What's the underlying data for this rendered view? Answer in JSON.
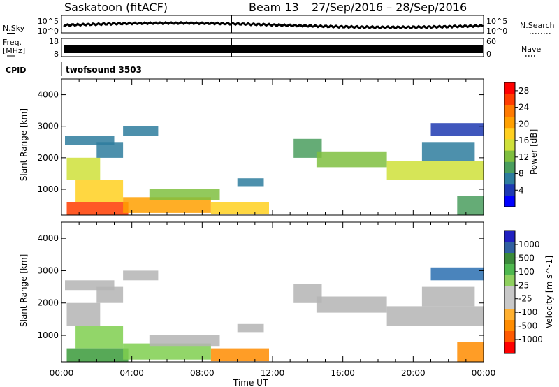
{
  "header": {
    "station": "Saskatoon (fitACF)",
    "beam": "Beam 13",
    "date_range": "27/Sep/2016 – 28/Sep/2016"
  },
  "strips": {
    "nsky_label": "N.Sky",
    "nsky_ticks": [
      "10^5",
      "10^0"
    ],
    "nsearch_label": "N.Search",
    "nsearch_ticks": [
      "10^5",
      "10^0"
    ],
    "freq_label_1": "Freq.",
    "freq_label_2": "[MHz]",
    "freq_ticks": [
      "18",
      "8"
    ],
    "nave_label": "Nave",
    "nave_ticks": [
      "60",
      "0"
    ],
    "cpid_label": "CPID",
    "cpid_value": "twofsound 3503"
  },
  "colors": {
    "power": [
      "#0000ff",
      "#1e3ab2",
      "#2e7d9e",
      "#4a9e5e",
      "#7fbf3f",
      "#cfe03a",
      "#ffd020",
      "#ffa000",
      "#ff7a00",
      "#ff3c00",
      "#ff0000"
    ],
    "velocity": [
      "#2020c0",
      "#3060a0",
      "#3a8a3a",
      "#4fb84f",
      "#8fd05f",
      "#c8c8c8",
      "#c8c8c8",
      "#ffb030",
      "#ff8c00",
      "#ff5a00",
      "#ff0000"
    ],
    "ground_scatter": "#b4b4b4"
  },
  "chart_data": [
    {
      "type": "heatmap",
      "title": "Power",
      "xlabel": "Time UT",
      "ylabel": "Slant Range [km]",
      "xlim": [
        "00:00",
        "00:00"
      ],
      "x_tick_labels": [
        "00:00",
        "04:00",
        "08:00",
        "12:00",
        "16:00",
        "20:00",
        "00:00"
      ],
      "ylim": [
        180,
        4500
      ],
      "y_ticks": [
        1000,
        2000,
        3000,
        4000
      ],
      "colorbar": {
        "label": "Power [dB]",
        "ticks": [
          4,
          8,
          12,
          16,
          20,
          24,
          28
        ],
        "range": [
          0,
          30
        ]
      },
      "regions": [
        {
          "t0": 0.3,
          "t1": 2.2,
          "r0": 1300,
          "r1": 2000,
          "value": 14
        },
        {
          "t0": 0.2,
          "t1": 3.0,
          "r0": 2400,
          "r1": 2700,
          "value": 6
        },
        {
          "t0": 2.0,
          "t1": 3.5,
          "r0": 2000,
          "r1": 2500,
          "value": 7
        },
        {
          "t0": 3.5,
          "t1": 5.5,
          "r0": 2700,
          "r1": 3000,
          "value": 6
        },
        {
          "t0": 0.3,
          "t1": 3.8,
          "r0": 180,
          "r1": 600,
          "value": 26
        },
        {
          "t0": 0.8,
          "t1": 3.5,
          "r0": 600,
          "r1": 1300,
          "value": 17
        },
        {
          "t0": 3.5,
          "t1": 8.5,
          "r0": 250,
          "r1": 750,
          "value": 20
        },
        {
          "t0": 5.0,
          "t1": 9.0,
          "r0": 650,
          "r1": 1000,
          "value": 13
        },
        {
          "t0": 8.5,
          "t1": 11.8,
          "r0": 200,
          "r1": 600,
          "value": 18
        },
        {
          "t0": 10.0,
          "t1": 11.5,
          "r0": 1100,
          "r1": 1350,
          "value": 6
        },
        {
          "t0": 13.2,
          "t1": 14.8,
          "r0": 2000,
          "r1": 2600,
          "value": 9
        },
        {
          "t0": 14.5,
          "t1": 18.5,
          "r0": 1700,
          "r1": 2200,
          "value": 12
        },
        {
          "t0": 18.5,
          "t1": 24.0,
          "r0": 1300,
          "r1": 1900,
          "value": 16
        },
        {
          "t0": 20.5,
          "t1": 23.5,
          "r0": 1900,
          "r1": 2500,
          "value": 7
        },
        {
          "t0": 21.0,
          "t1": 24.0,
          "r0": 2700,
          "r1": 3100,
          "value": 5
        },
        {
          "t0": 22.5,
          "t1": 24.0,
          "r0": 180,
          "r1": 800,
          "value": 10
        }
      ]
    },
    {
      "type": "heatmap",
      "title": "Velocity",
      "xlabel": "Time UT",
      "ylabel": "Slant Range [km]",
      "xlim": [
        "00:00",
        "00:00"
      ],
      "x_tick_labels": [
        "00:00",
        "04:00",
        "08:00",
        "12:00",
        "16:00",
        "20:00",
        "00:00"
      ],
      "ylim": [
        180,
        4500
      ],
      "y_ticks": [
        1000,
        2000,
        3000,
        4000
      ],
      "colorbar": {
        "label": "Velocity [m s^-1]",
        "ticks": [
          1000,
          500,
          100,
          25,
          -25,
          -100,
          -500,
          -1000
        ]
      },
      "regions": [
        {
          "t0": 0.3,
          "t1": 2.2,
          "r0": 1300,
          "r1": 2000,
          "value": 0
        },
        {
          "t0": 0.2,
          "t1": 3.0,
          "r0": 2400,
          "r1": 2700,
          "value": 0
        },
        {
          "t0": 2.0,
          "t1": 3.5,
          "r0": 2000,
          "r1": 2500,
          "value": 0
        },
        {
          "t0": 3.5,
          "t1": 5.5,
          "r0": 2700,
          "r1": 3000,
          "value": 0
        },
        {
          "t0": 0.3,
          "t1": 3.8,
          "r0": 180,
          "r1": 600,
          "value": 150
        },
        {
          "t0": 0.8,
          "t1": 3.5,
          "r0": 600,
          "r1": 1300,
          "value": 80
        },
        {
          "t0": 3.5,
          "t1": 8.5,
          "r0": 250,
          "r1": 750,
          "value": 60
        },
        {
          "t0": 5.0,
          "t1": 9.0,
          "r0": 650,
          "r1": 1000,
          "value": 0
        },
        {
          "t0": 8.5,
          "t1": 11.8,
          "r0": 200,
          "r1": 600,
          "value": -200
        },
        {
          "t0": 10.0,
          "t1": 11.5,
          "r0": 1100,
          "r1": 1350,
          "value": 0
        },
        {
          "t0": 13.2,
          "t1": 14.8,
          "r0": 2000,
          "r1": 2600,
          "value": 0
        },
        {
          "t0": 14.5,
          "t1": 18.5,
          "r0": 1700,
          "r1": 2200,
          "value": 0
        },
        {
          "t0": 18.5,
          "t1": 24.0,
          "r0": 1300,
          "r1": 1900,
          "value": 0
        },
        {
          "t0": 20.5,
          "t1": 23.5,
          "r0": 1900,
          "r1": 2500,
          "value": 0
        },
        {
          "t0": 21.0,
          "t1": 24.0,
          "r0": 2700,
          "r1": 3100,
          "value": 600
        },
        {
          "t0": 22.5,
          "t1": 24.0,
          "r0": 180,
          "r1": 800,
          "value": -150
        }
      ]
    }
  ]
}
